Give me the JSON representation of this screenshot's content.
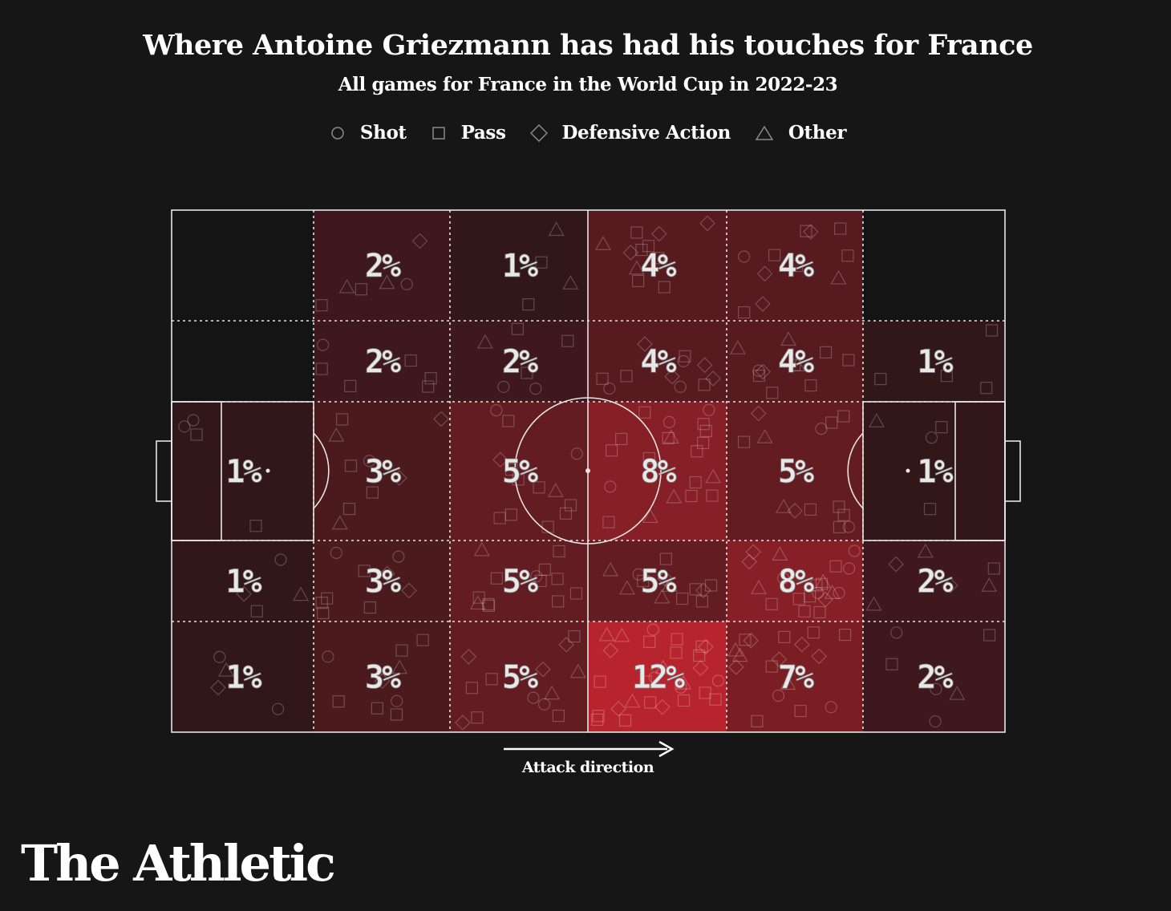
{
  "title": "Where Antoine Griezmann has had his touches for France",
  "subtitle": "All games for France in the World Cup in 2022-23",
  "legend": [
    {
      "label": "Shot",
      "shape": "circle"
    },
    {
      "label": "Pass",
      "shape": "square"
    },
    {
      "label": "Defensive Action",
      "shape": "diamond"
    },
    {
      "label": "Other",
      "shape": "triangle"
    }
  ],
  "attack_direction_label": "Attack direction",
  "brand": "The Athletic",
  "colors": {
    "background": "#161616",
    "heat_max": "#b8242d",
    "pitch_lines": "#e6e6e6"
  },
  "chart_data": {
    "type": "heatmap",
    "title": "Where Antoine Griezmann has had his touches for France",
    "subtitle": "All games for France in the World Cup in 2022-23",
    "unit": "%",
    "attack_direction": "left-to-right",
    "grid_columns": 6,
    "grid_rows": 5,
    "values": [
      [
        null,
        2,
        1,
        4,
        4,
        null
      ],
      [
        null,
        2,
        2,
        4,
        4,
        1
      ],
      [
        1,
        3,
        5,
        8,
        5,
        1
      ],
      [
        1,
        3,
        5,
        5,
        8,
        2
      ],
      [
        1,
        3,
        5,
        12,
        7,
        2
      ]
    ],
    "labels": [
      [
        "",
        "2%",
        "1%",
        "4%",
        "4%",
        ""
      ],
      [
        "",
        "2%",
        "2%",
        "4%",
        "4%",
        "1%"
      ],
      [
        "1%",
        "3%",
        "5%",
        "8%",
        "5%",
        "1%"
      ],
      [
        "1%",
        "3%",
        "5%",
        "5%",
        "8%",
        "2%"
      ],
      [
        "1%",
        "3%",
        "5%",
        "12%",
        "7%",
        "2%"
      ]
    ]
  }
}
